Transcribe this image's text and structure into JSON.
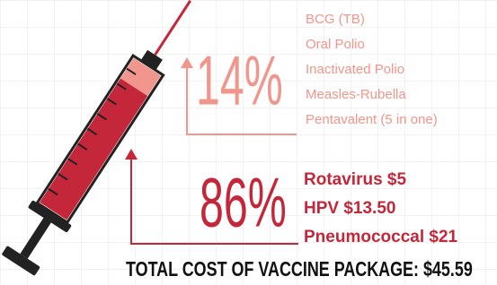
{
  "chart_data": {
    "type": "syringe",
    "values": [
      14,
      86
    ],
    "value_labels": [
      "14%",
      "86%"
    ],
    "colors": [
      "#f0968c",
      "#c4263a"
    ],
    "groups": [
      [
        "BCG (TB)",
        "Oral Polio",
        "Inactivated Polio",
        "Measles-Rubella",
        "Pentavalent (5 in one)"
      ],
      [
        "Rotavirus $5",
        "HPV $13.50",
        "Pneumococcal $21"
      ]
    ],
    "footer": "TOTAL COST OF VACCINE PACKAGE: $45.59"
  }
}
